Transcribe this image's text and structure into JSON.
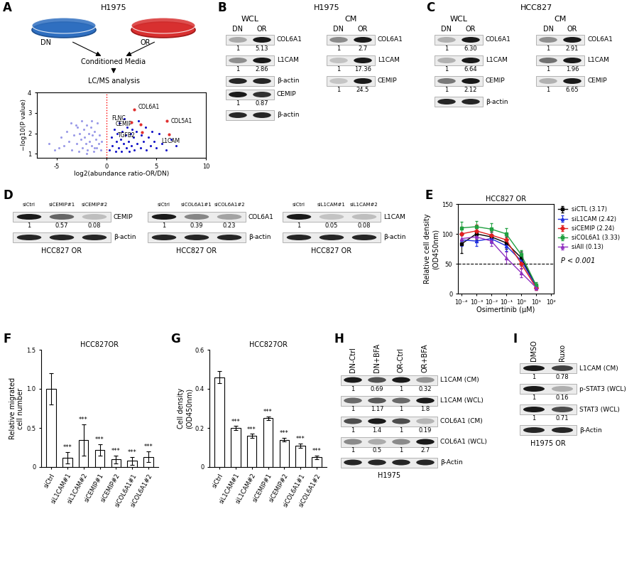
{
  "schematic": {
    "panel_label": "A",
    "title": "H1975",
    "dishes": [
      "DN",
      "OR"
    ],
    "steps": [
      "Conditioned Media",
      "LC/MS analysis"
    ]
  },
  "chart_data": [
    {
      "type": "scatter",
      "xlabel": "log2(abundance ratio-OR/DN)",
      "ylabel": "−log10(P value)",
      "xlim": [
        -7,
        10
      ],
      "xticks": [
        -5,
        0,
        5,
        10
      ],
      "ylim": [
        0.8,
        4
      ],
      "yticks": [
        1,
        2,
        3,
        4
      ],
      "threshold_x": 0,
      "series": [
        {
          "color": "#9b9be8",
          "x": [
            -5.8,
            -5.2,
            -4.6,
            -4.3,
            -4.0,
            -3.8,
            -3.5,
            -3.3,
            -3.1,
            -3.0,
            -2.8,
            -2.7,
            -2.6,
            -2.5,
            -2.4,
            -2.3,
            -2.2,
            -2.1,
            -2.0,
            -1.9,
            -1.8,
            -1.7,
            -1.6,
            -1.5,
            -1.4,
            -1.3,
            -1.2,
            -1.1,
            -1.0,
            -0.9,
            -0.8,
            -0.7,
            -0.6,
            -0.5,
            -2.9,
            -3.6,
            -1.5,
            -4.8,
            -2.0,
            -1.2
          ],
          "y": [
            1.5,
            1.2,
            1.8,
            1.4,
            2.1,
            1.6,
            1.2,
            1.9,
            2.4,
            1.5,
            1.1,
            2.0,
            1.7,
            2.6,
            1.3,
            2.2,
            1.8,
            1.5,
            2.4,
            1.2,
            2.0,
            1.6,
            2.3,
            1.4,
            1.9,
            1.1,
            2.1,
            1.7,
            1.3,
            2.5,
            1.5,
            1.9,
            1.2,
            1.6,
            2.3,
            2.5,
            2.6,
            1.3,
            1.0,
            1.3
          ]
        },
        {
          "color": "#1515c8",
          "x": [
            0.3,
            0.5,
            0.6,
            0.8,
            0.9,
            1.0,
            1.1,
            1.2,
            1.3,
            1.4,
            1.5,
            1.6,
            1.7,
            1.8,
            1.9,
            2.0,
            2.1,
            2.2,
            2.3,
            2.4,
            2.5,
            2.6,
            2.7,
            2.8,
            3.0,
            3.1,
            3.2,
            3.4,
            3.5,
            3.7,
            3.9,
            4.0,
            4.2,
            4.4,
            4.6,
            4.8,
            5.0,
            5.3,
            5.6,
            6.0,
            6.5,
            7.0
          ],
          "y": [
            1.2,
            1.8,
            1.4,
            2.2,
            1.1,
            1.6,
            2.0,
            1.3,
            2.5,
            1.7,
            1.1,
            2.1,
            1.5,
            2.7,
            1.9,
            1.3,
            2.3,
            1.6,
            1.1,
            2.0,
            1.4,
            2.2,
            1.8,
            1.2,
            2.1,
            1.5,
            2.6,
            1.3,
            1.9,
            1.6,
            2.3,
            1.2,
            1.8,
            1.4,
            2.1,
            1.6,
            1.3,
            2.0,
            1.5,
            1.2,
            1.7,
            1.4
          ]
        },
        {
          "color": "#e03030",
          "x": [
            2.8,
            2.5,
            6.1,
            3.4,
            3.6,
            6.3
          ],
          "y": [
            3.15,
            2.55,
            2.6,
            2.45,
            2.05,
            1.95
          ],
          "point_labels": [
            "COL6A1",
            "FLNC",
            "COL5A1",
            "CEMIP",
            "TGFB2",
            "L1CAM"
          ]
        }
      ]
    },
    {
      "type": "line",
      "panel_label": "E",
      "title": "HCC827 OR",
      "xlabel": "Osimertinib (μM)",
      "ylabel": "Relative cell density\n(OD450nm)",
      "log": "x",
      "xlim": [
        6e-05,
        150
      ],
      "xticks": [
        {
          "value": 0.0001,
          "label": "10⁻⁴"
        },
        {
          "value": 0.001,
          "label": "10⁻³"
        },
        {
          "value": 0.01,
          "label": "10⁻²"
        },
        {
          "value": 0.1,
          "label": "10⁻¹"
        },
        {
          "value": 1,
          "label": "10⁰"
        },
        {
          "value": 10,
          "label": "10¹"
        },
        {
          "value": 100,
          "label": "10²"
        }
      ],
      "ylim": [
        0,
        150
      ],
      "yticks": [
        0,
        50,
        100,
        150
      ],
      "threshold_y": 50,
      "legend": "right",
      "annotation": "P < 0.001",
      "x": [
        0.0001,
        0.001,
        0.01,
        0.1,
        1,
        10
      ],
      "series": [
        {
          "name": "siCTL (3.17)",
          "color": "#000000",
          "marker": "square",
          "values": [
            83,
            100,
            95,
            85,
            60,
            12
          ],
          "errors": [
            15,
            10,
            8,
            10,
            10,
            5
          ]
        },
        {
          "name": "siL1CAM (2.42)",
          "color": "#2030e0",
          "marker": "triangle",
          "values": [
            90,
            88,
            92,
            80,
            55,
            12
          ],
          "errors": [
            10,
            8,
            8,
            8,
            8,
            4
          ]
        },
        {
          "name": "siCEMIP (2.24)",
          "color": "#e02020",
          "marker": "diamond",
          "values": [
            100,
            105,
            98,
            90,
            50,
            10
          ],
          "errors": [
            12,
            10,
            8,
            8,
            8,
            4
          ]
        },
        {
          "name": "siCOL6A1 (3.33)",
          "color": "#20a040",
          "marker": "square",
          "values": [
            110,
            112,
            108,
            100,
            65,
            14
          ],
          "errors": [
            10,
            10,
            10,
            10,
            8,
            5
          ]
        },
        {
          "name": "siAll (0.13)",
          "color": "#9030c0",
          "marker": "triangle",
          "values": [
            92,
            95,
            88,
            60,
            35,
            10
          ],
          "errors": [
            10,
            8,
            8,
            10,
            8,
            4
          ]
        }
      ]
    },
    {
      "type": "bar",
      "panel_label": "F",
      "title": "HCC827OR",
      "ylabel": "Relative migrated\ncell number",
      "color": "#ffffff",
      "categories": [
        "siCtrl",
        "siL1CAM#1",
        "siL1CAM#2",
        "siCEMIP#1",
        "siCEMIP#2",
        "siCOL6A1#1",
        "siCOL6A1#2"
      ],
      "values": [
        1.0,
        0.12,
        0.35,
        0.22,
        0.1,
        0.08,
        0.13
      ],
      "errors": [
        0.2,
        0.07,
        0.2,
        0.07,
        0.05,
        0.05,
        0.07
      ],
      "significance": [
        null,
        "***",
        "***",
        "***",
        "***",
        "***",
        "***"
      ],
      "ylim": [
        0,
        1.5
      ],
      "yticks": [
        0,
        0.5,
        1.0,
        1.5
      ]
    },
    {
      "type": "bar",
      "panel_label": "G",
      "title": "HCC827OR",
      "ylabel": "Cell density\n(OD450nm)",
      "color": "#ffffff",
      "categories": [
        "siCtrl",
        "siL1CAM#1",
        "siL1CAM#2",
        "siCEMIP#1",
        "siCEMIP#2",
        "siCOL6A1#1",
        "siCOL6A1#2"
      ],
      "values": [
        0.46,
        0.2,
        0.16,
        0.25,
        0.14,
        0.11,
        0.05
      ],
      "errors": [
        0.03,
        0.01,
        0.01,
        0.01,
        0.01,
        0.01,
        0.01
      ],
      "significance": [
        null,
        "***",
        "***",
        "***",
        "***",
        "***",
        "***"
      ],
      "ylim": [
        0,
        0.6
      ],
      "yticks": [
        0,
        0.2,
        0.4,
        0.6
      ]
    }
  ],
  "blots": [
    {
      "panel_label": "B",
      "title": "H1975",
      "groups": [
        {
          "title": "WCL",
          "lanes": [
            "DN",
            "OR"
          ],
          "rows": [
            {
              "label": "COL6A1",
              "quant": [
                "1",
                "5.13"
              ]
            },
            {
              "label": "L1CAM",
              "quant": [
                "1",
                "2.86"
              ]
            },
            {
              "label": "β-actin"
            },
            {
              "label": "CEMIP",
              "quant": [
                "1",
                "0.87"
              ]
            },
            {
              "label": "β-actin"
            }
          ]
        },
        {
          "title": "CM",
          "lanes": [
            "DN",
            "OR"
          ],
          "rows": [
            {
              "label": "COL6A1",
              "quant": [
                "1",
                "2.7"
              ]
            },
            {
              "label": "L1CAM",
              "quant": [
                "1",
                "17.36"
              ]
            },
            {
              "label": "CEMIP",
              "quant": [
                "1",
                "24.5"
              ]
            }
          ]
        }
      ]
    },
    {
      "panel_label": "C",
      "title": "HCC827",
      "groups": [
        {
          "title": "WCL",
          "lanes": [
            "DN",
            "OR"
          ],
          "rows": [
            {
              "label": "COL6A1",
              "quant": [
                "1",
                "6.30"
              ]
            },
            {
              "label": "L1CAM",
              "quant": [
                "1",
                "6.64"
              ]
            },
            {
              "label": "CEMIP",
              "quant": [
                "1",
                "2.12"
              ]
            },
            {
              "label": "β-actin"
            }
          ]
        },
        {
          "title": "CM",
          "lanes": [
            "DN",
            "OR"
          ],
          "rows": [
            {
              "label": "COL6A1",
              "quant": [
                "1",
                "2.91"
              ]
            },
            {
              "label": "L1CAM",
              "quant": [
                "1",
                "1.96"
              ]
            },
            {
              "label": "CEMIP",
              "quant": [
                "1",
                "6.65"
              ]
            }
          ]
        }
      ]
    },
    {
      "panel_label": "D",
      "groups": [
        {
          "lanes": [
            "siCtrl",
            "siCEMIP#1",
            "siCEMIP#2"
          ],
          "rows": [
            {
              "label": "CEMIP",
              "quant": [
                "1",
                "0.57",
                "0.08"
              ]
            },
            {
              "label": "β-actin"
            }
          ],
          "caption": "HCC827 OR"
        },
        {
          "lanes": [
            "siCtrl",
            "siCOL6A1#1",
            "siCOL6A1#2"
          ],
          "rows": [
            {
              "label": "COL6A1",
              "quant": [
                "1",
                "0.39",
                "0.23"
              ]
            },
            {
              "label": "β-actin"
            }
          ],
          "caption": "HCC827 OR"
        },
        {
          "lanes": [
            "siCtrl",
            "siL1CAM#1",
            "siL1CAM#2"
          ],
          "rows": [
            {
              "label": "L1CAM",
              "quant": [
                "1",
                "0.05",
                "0.08"
              ]
            },
            {
              "label": "β-actin"
            }
          ],
          "caption": "HCC827 OR"
        }
      ]
    },
    {
      "panel_label": "H",
      "groups": [
        {
          "lanes": [
            "DN-Ctrl",
            "DN+BFA",
            "OR-Ctrl",
            "OR+BFA"
          ],
          "rows": [
            {
              "label": "L1CAM (CM)",
              "quant": [
                "1",
                "0.69",
                "1",
                "0.32"
              ]
            },
            {
              "label": "L1CAM (WCL)",
              "quant": [
                "1",
                "1.17",
                "1",
                "1.8"
              ]
            },
            {
              "label": "COL6A1 (CM)",
              "quant": [
                "1",
                "1.4",
                "1",
                "0.19"
              ]
            },
            {
              "label": "COL6A1 (WCL)",
              "quant": [
                "1",
                "0.5",
                "1",
                "2.7"
              ]
            },
            {
              "label": "β-Actin"
            }
          ],
          "caption": "H1975"
        }
      ]
    },
    {
      "panel_label": "I",
      "groups": [
        {
          "lanes": [
            "DMSO",
            "Ruxo"
          ],
          "rows": [
            {
              "label": "L1CAM (CM)",
              "quant": [
                "1",
                "0.78"
              ]
            },
            {
              "label": "p-STAT3 (WCL)",
              "quant": [
                "1",
                "0.16"
              ]
            },
            {
              "label": "STAT3 (WCL)",
              "quant": [
                "1",
                "0.71"
              ]
            },
            {
              "label": "β-Actin"
            }
          ],
          "caption": "H1975 OR"
        }
      ]
    }
  ]
}
